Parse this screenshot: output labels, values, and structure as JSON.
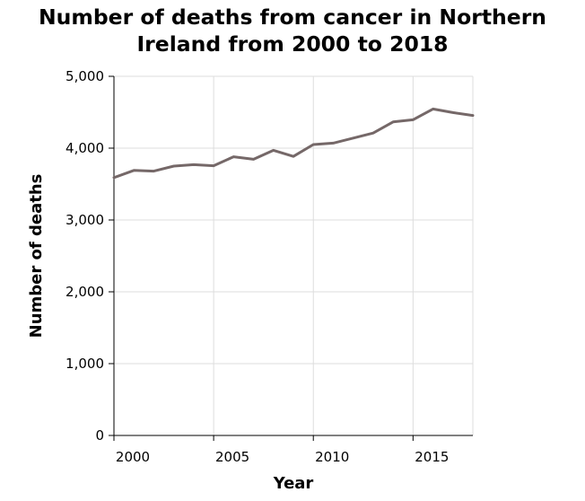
{
  "chart_data": {
    "type": "line",
    "title_lines": [
      "Number of deaths from cancer in Northern",
      "Ireland from 2000 to 2018"
    ],
    "xlabel": "Year",
    "ylabel": "Number of deaths",
    "xlim": [
      2000,
      2018
    ],
    "ylim": [
      0,
      5000
    ],
    "x_ticks": [
      2000,
      2005,
      2010,
      2015
    ],
    "x_tick_labels": [
      "2000",
      "2005",
      "2010",
      "2015"
    ],
    "y_ticks": [
      0,
      1000,
      2000,
      3000,
      4000,
      5000
    ],
    "y_tick_labels": [
      "0",
      "1,000",
      "2,000",
      "3,000",
      "4,000",
      "5,000"
    ],
    "grid": true,
    "line_color": "#756868",
    "series": [
      {
        "x": [
          2000,
          2001,
          2002,
          2003,
          2004,
          2005,
          2006,
          2007,
          2008,
          2009,
          2010,
          2011,
          2012,
          2013,
          2014,
          2015,
          2016,
          2017,
          2018
        ],
        "values": [
          3590,
          3690,
          3680,
          3750,
          3770,
          3755,
          3880,
          3845,
          3970,
          3885,
          4050,
          4070,
          4140,
          4210,
          4365,
          4395,
          4545,
          4495,
          4455
        ]
      }
    ]
  }
}
